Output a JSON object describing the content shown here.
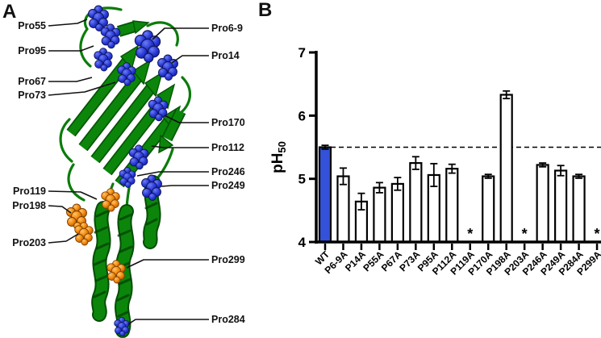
{
  "figure": {
    "panel_a_letter": "A",
    "panel_b_letter": "B"
  },
  "colors": {
    "ribbon_green": "#0b860b",
    "sphere_blue": "#2a3ad8",
    "sphere_orange": "#f08508",
    "bar_highlight_blue": "#3352d9",
    "bar_fill": "#ffffff",
    "axis_black": "#000000"
  },
  "panel_a": {
    "description": "protein-ribbon-structure-with-proline-residues",
    "labels": [
      {
        "text": "Pro55",
        "side": "left",
        "marker_color": "blue"
      },
      {
        "text": "Pro95",
        "side": "left",
        "marker_color": "blue"
      },
      {
        "text": "Pro67",
        "side": "left",
        "marker_color": "blue"
      },
      {
        "text": "Pro73",
        "side": "left",
        "marker_color": "blue"
      },
      {
        "text": "Pro119",
        "side": "left",
        "marker_color": "orange"
      },
      {
        "text": "Pro198",
        "side": "left",
        "marker_color": "orange"
      },
      {
        "text": "Pro203",
        "side": "left",
        "marker_color": "orange"
      },
      {
        "text": "Pro6-9",
        "side": "right",
        "marker_color": "blue"
      },
      {
        "text": "Pro14",
        "side": "right",
        "marker_color": "blue"
      },
      {
        "text": "Pro170",
        "side": "right",
        "marker_color": "blue"
      },
      {
        "text": "Pro112",
        "side": "right",
        "marker_color": "blue"
      },
      {
        "text": "Pro246",
        "side": "right",
        "marker_color": "blue"
      },
      {
        "text": "Pro249",
        "side": "right",
        "marker_color": "blue"
      },
      {
        "text": "Pro299",
        "side": "right",
        "marker_color": "orange"
      },
      {
        "text": "Pro284",
        "side": "right",
        "marker_color": "blue"
      }
    ]
  },
  "chart_data": {
    "type": "bar",
    "title": "",
    "ylabel_main": "pH",
    "ylabel_sub": "50",
    "xlabel": "",
    "ylim": [
      4,
      7
    ],
    "yticks": [
      4,
      5,
      6,
      7
    ],
    "grid": false,
    "reference_line": 5.5,
    "categories": [
      "WT",
      "P6-9A",
      "P14A",
      "P55A",
      "P67A",
      "P73A",
      "P95A",
      "P112A",
      "P119A",
      "P170A",
      "P198A",
      "P203A",
      "P246A",
      "P249A",
      "P284A",
      "P299A"
    ],
    "values": [
      5.5,
      5.04,
      4.64,
      4.86,
      4.92,
      5.25,
      5.06,
      5.16,
      null,
      5.04,
      6.33,
      null,
      5.22,
      5.13,
      5.04,
      null
    ],
    "errors": [
      0.03,
      0.13,
      0.13,
      0.08,
      0.1,
      0.1,
      0.18,
      0.07,
      null,
      0.03,
      0.06,
      null,
      0.03,
      0.08,
      0.03,
      null
    ],
    "highlight_category": "WT",
    "no_data_symbol": "*",
    "no_data_categories": [
      "P119A",
      "P203A",
      "P299A"
    ]
  }
}
